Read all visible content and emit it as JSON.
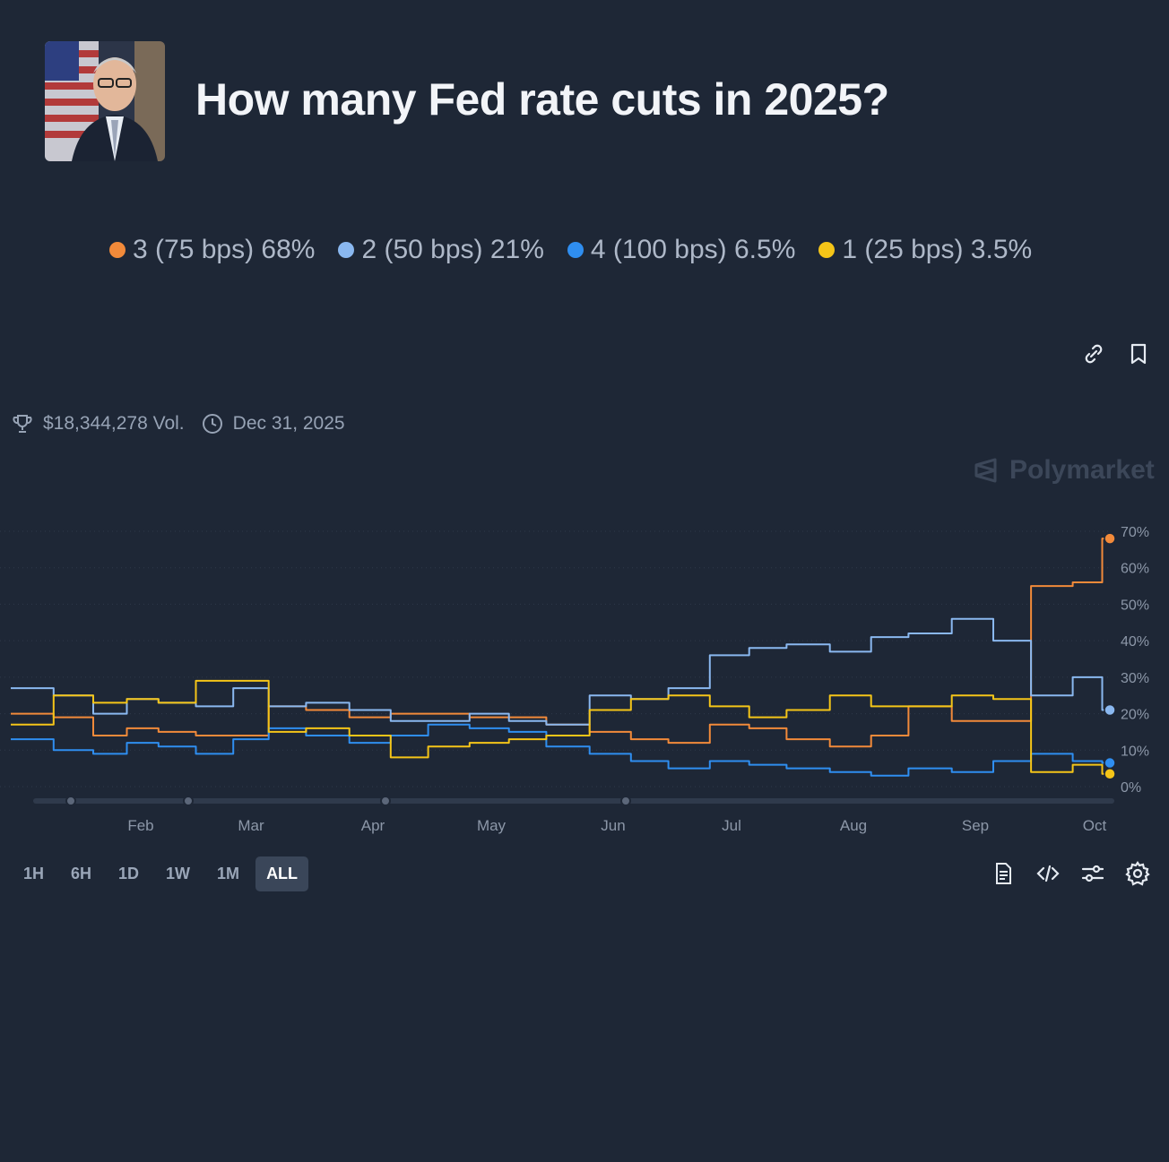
{
  "header": {
    "title": "How many Fed rate cuts in 2025?"
  },
  "legend": [
    {
      "label": "3 (75 bps) 68%",
      "color": "#f28a3a"
    },
    {
      "label": "2 (50 bps) 21%",
      "color": "#8ab8f0"
    },
    {
      "label": "4 (100 bps) 6.5%",
      "color": "#2f8ef0"
    },
    {
      "label": "1 (25 bps) 3.5%",
      "color": "#f5c518"
    }
  ],
  "meta": {
    "volume": "$18,344,278 Vol.",
    "end_date": "Dec 31, 2025"
  },
  "watermark": "Polymarket",
  "toolbar": {
    "link_icon": "link-icon",
    "bookmark_icon": "bookmark-icon"
  },
  "ranges": [
    "1H",
    "6H",
    "1D",
    "1W",
    "1M",
    "ALL"
  ],
  "active_range": "ALL",
  "tools": [
    "document-icon",
    "code-icon",
    "sliders-icon",
    "gear-icon"
  ],
  "chart_data": {
    "type": "line",
    "x_tick_labels": [
      "Feb",
      "Mar",
      "Apr",
      "May",
      "Jun",
      "Jul",
      "Aug",
      "Sep",
      "Oct"
    ],
    "y_tick_labels": [
      "70%",
      "60%",
      "50%",
      "40%",
      "30%",
      "20%",
      "10%",
      "0%"
    ],
    "ylim": [
      0,
      70
    ],
    "x": [
      "Jan 5",
      "Jan 15",
      "Jan 25",
      "Feb 1",
      "Feb 10",
      "Feb 20",
      "Mar 1",
      "Mar 10",
      "Mar 20",
      "Apr 1",
      "Apr 10",
      "Apr 20",
      "May 1",
      "May 10",
      "May 20",
      "Jun 1",
      "Jun 10",
      "Jun 20",
      "Jul 1",
      "Jul 10",
      "Jul 20",
      "Aug 1",
      "Aug 10",
      "Aug 20",
      "Sep 1",
      "Sep 10",
      "Sep 20",
      "Oct 1",
      "Oct 5"
    ],
    "series": [
      {
        "name": "3 (75 bps)",
        "color": "#f28a3a",
        "values": [
          20,
          19,
          14,
          16,
          15,
          14,
          14,
          22,
          21,
          19,
          20,
          20,
          19,
          19,
          17,
          15,
          13,
          12,
          17,
          16,
          13,
          11,
          14,
          22,
          18,
          18,
          55,
          56,
          68
        ]
      },
      {
        "name": "2 (50 bps)",
        "color": "#8ab8f0",
        "values": [
          27,
          25,
          20,
          24,
          23,
          22,
          27,
          22,
          23,
          21,
          18,
          18,
          20,
          18,
          17,
          25,
          24,
          27,
          36,
          38,
          39,
          37,
          41,
          42,
          46,
          40,
          25,
          30,
          21
        ]
      },
      {
        "name": "4 (100 bps)",
        "color": "#2f8ef0",
        "values": [
          13,
          10,
          9,
          12,
          11,
          9,
          13,
          16,
          14,
          12,
          14,
          17,
          16,
          15,
          11,
          9,
          7,
          5,
          7,
          6,
          5,
          4,
          3,
          5,
          4,
          7,
          9,
          7,
          6.5
        ]
      },
      {
        "name": "1 (25 bps)",
        "color": "#f5c518",
        "values": [
          17,
          25,
          23,
          24,
          23,
          29,
          29,
          15,
          16,
          14,
          8,
          11,
          12,
          13,
          14,
          21,
          24,
          25,
          22,
          19,
          21,
          25,
          22,
          22,
          25,
          24,
          4,
          6,
          3.5
        ]
      }
    ]
  }
}
